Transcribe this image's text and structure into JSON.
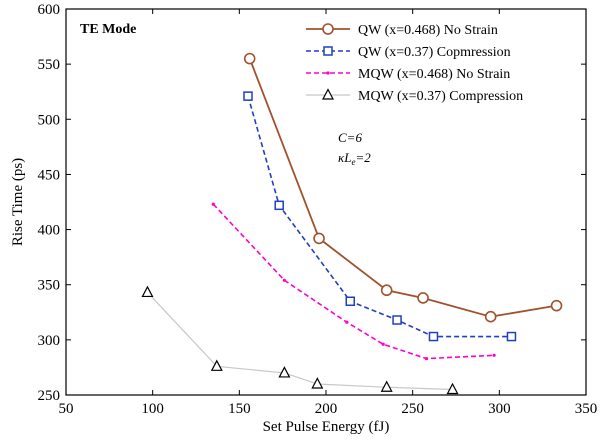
{
  "chart_data": {
    "type": "line",
    "xlabel": "Set Pulse Energy (fJ)",
    "ylabel": "Rise Time (ps)",
    "xlim": [
      50,
      350
    ],
    "ylim": [
      250,
      600
    ],
    "xticks": [
      50,
      100,
      150,
      200,
      250,
      300,
      350
    ],
    "yticks": [
      250,
      300,
      350,
      400,
      450,
      500,
      550,
      600
    ],
    "xtick_labels": [
      "50",
      "100",
      "150",
      "200",
      "250",
      "300",
      "350"
    ],
    "ytick_labels": [
      "250",
      "300",
      "350",
      "400",
      "450",
      "500",
      "550",
      "600"
    ],
    "grid": false,
    "legend_position": "top-right",
    "annotations": {
      "mode": "TE Mode",
      "c_text": "C=6",
      "kl_k": "κL",
      "kl_sub": "e",
      "kl_rest": "=2"
    },
    "series": [
      {
        "name": "QW (x=0.468)  No Strain",
        "color": "#a0522d",
        "line": "solid",
        "marker": "circle",
        "x": [
          156,
          196,
          235,
          256,
          295,
          333
        ],
        "y": [
          555,
          392,
          345,
          338,
          321,
          331
        ]
      },
      {
        "name": "QW (x=0.37) Copmression",
        "color": "#1f3fbf",
        "line": "dashed",
        "marker": "square",
        "x": [
          155,
          173,
          214,
          241,
          262,
          307
        ],
        "y": [
          521,
          422,
          335,
          318,
          303,
          303
        ]
      },
      {
        "name": "MQW (x=0.468) No Strain",
        "color": "#ff00cc",
        "line": "dashed",
        "marker": "dot",
        "x": [
          135,
          176,
          212,
          233,
          258,
          297
        ],
        "y": [
          423,
          354,
          316,
          296,
          283,
          286
        ]
      },
      {
        "name": "MQW (x=0.37)  Compression",
        "color": "#c8c8c8",
        "line": "solid",
        "marker": "triangle",
        "x": [
          97,
          137,
          176,
          195,
          235,
          273
        ],
        "y": [
          343,
          276,
          270,
          260,
          257,
          255
        ]
      }
    ]
  }
}
